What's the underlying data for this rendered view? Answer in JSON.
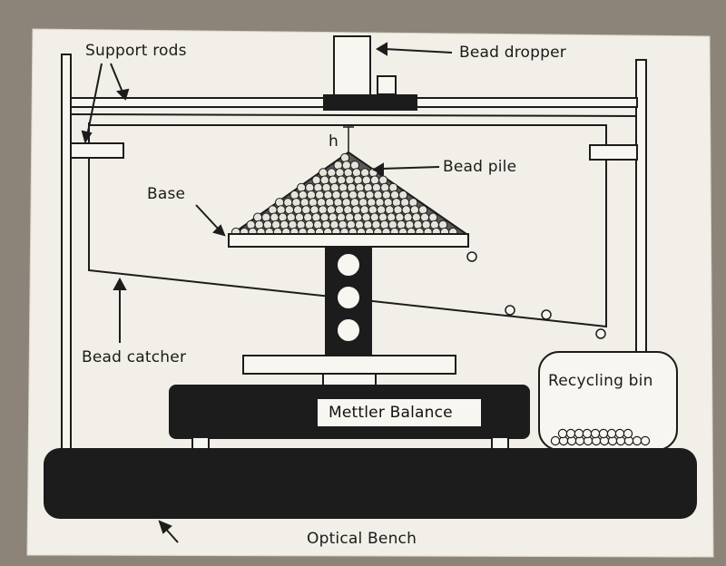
{
  "labels": {
    "support_rods": "Support rods",
    "bead_dropper": "Bead dropper",
    "h": "h",
    "bead_pile": "Bead pile",
    "base": "Base",
    "bead_catcher": "Bead catcher",
    "recycling_bin": "Recycling bin",
    "balance": "Mettler Balance",
    "bench": "Optical Bench"
  },
  "colors": {
    "paper": "#f1efe8",
    "ink": "#1c1c1c",
    "background": "#8c8478"
  }
}
